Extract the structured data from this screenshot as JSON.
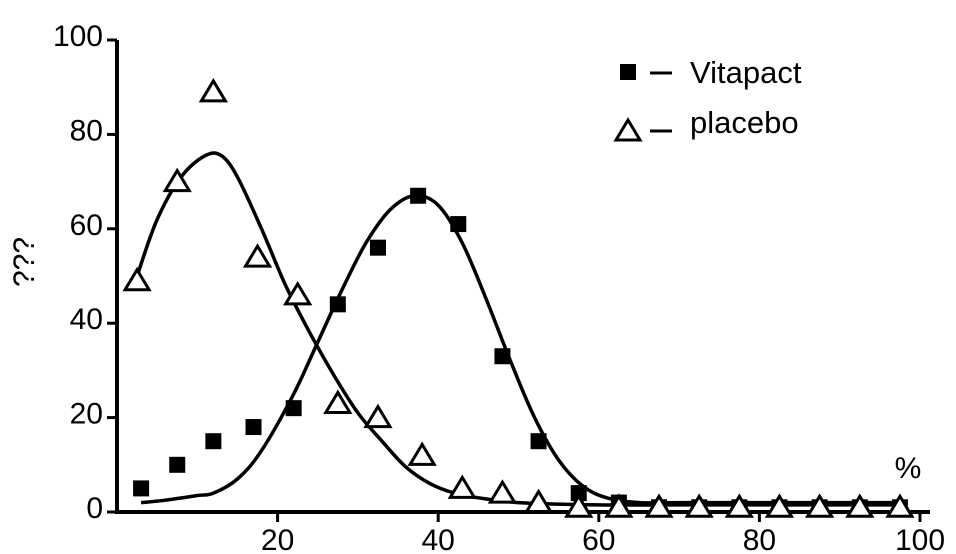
{
  "chart_data": {
    "type": "scatter",
    "title": "",
    "xlabel": "%",
    "ylabel": "???",
    "xlim": [
      0,
      100
    ],
    "ylim": [
      0,
      100
    ],
    "x_ticks": [
      "20",
      "40",
      "60",
      "80",
      "100"
    ],
    "y_ticks": [
      "0",
      "20",
      "40",
      "60",
      "80",
      "100"
    ],
    "grid": false,
    "legend_position": "top-right",
    "series": [
      {
        "name": "Vitapact",
        "marker": "filled-square",
        "points": [
          [
            3,
            5
          ],
          [
            7.5,
            10
          ],
          [
            12,
            15
          ],
          [
            17,
            18
          ],
          [
            22,
            22
          ],
          [
            27.5,
            44
          ],
          [
            32.5,
            56
          ],
          [
            37.5,
            67
          ],
          [
            42.5,
            61
          ],
          [
            48,
            33
          ],
          [
            52.5,
            15
          ],
          [
            57.5,
            4
          ],
          [
            62.5,
            2
          ],
          [
            67.5,
            1
          ],
          [
            72.5,
            1
          ],
          [
            77.5,
            1
          ],
          [
            82.5,
            1
          ],
          [
            87.5,
            1
          ],
          [
            92.5,
            1
          ],
          [
            97.5,
            1
          ]
        ],
        "fit_curve": [
          [
            3,
            2
          ],
          [
            6,
            2.5
          ],
          [
            10,
            3.5
          ],
          [
            12,
            4
          ],
          [
            15,
            7
          ],
          [
            18,
            13
          ],
          [
            22,
            25
          ],
          [
            25,
            36
          ],
          [
            28,
            47
          ],
          [
            31,
            57
          ],
          [
            34,
            64
          ],
          [
            37,
            67
          ],
          [
            40,
            65
          ],
          [
            43,
            57
          ],
          [
            46,
            45
          ],
          [
            49,
            32
          ],
          [
            52,
            20
          ],
          [
            55,
            11
          ],
          [
            58,
            5.5
          ],
          [
            61,
            3
          ],
          [
            65,
            2
          ],
          [
            70,
            2
          ],
          [
            80,
            2
          ],
          [
            90,
            2
          ],
          [
            97,
            2
          ]
        ]
      },
      {
        "name": "placebo",
        "marker": "open-triangle",
        "points": [
          [
            2.5,
            49
          ],
          [
            7.5,
            70
          ],
          [
            12,
            89
          ],
          [
            17.5,
            54
          ],
          [
            22.5,
            46
          ],
          [
            27.5,
            23
          ],
          [
            32.5,
            20
          ],
          [
            38,
            12
          ],
          [
            43,
            5
          ],
          [
            48,
            4
          ],
          [
            52.5,
            2
          ],
          [
            57.5,
            1
          ],
          [
            62.5,
            1
          ],
          [
            67.5,
            1
          ],
          [
            72.5,
            1
          ],
          [
            77.5,
            1
          ],
          [
            82.5,
            1
          ],
          [
            87.5,
            1
          ],
          [
            92.5,
            1
          ],
          [
            97.5,
            1
          ]
        ],
        "fit_curve": [
          [
            2.5,
            50
          ],
          [
            5,
            62
          ],
          [
            8,
            71
          ],
          [
            11,
            75.5
          ],
          [
            13,
            75.5
          ],
          [
            15,
            71
          ],
          [
            18,
            60
          ],
          [
            21,
            48
          ],
          [
            24,
            38
          ],
          [
            27,
            29
          ],
          [
            30,
            21
          ],
          [
            33,
            15
          ],
          [
            36,
            9.5
          ],
          [
            39,
            6
          ],
          [
            42,
            4
          ],
          [
            45,
            3
          ],
          [
            50,
            2
          ],
          [
            60,
            1.5
          ],
          [
            70,
            1.5
          ],
          [
            80,
            1.5
          ],
          [
            90,
            1.5
          ],
          [
            97,
            1.5
          ]
        ]
      }
    ]
  }
}
